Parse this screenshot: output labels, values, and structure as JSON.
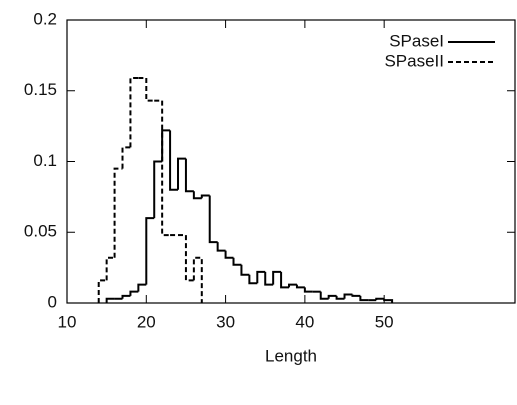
{
  "chart_data": {
    "type": "histogram",
    "x_label": "Length",
    "xlim": [
      10,
      66.5
    ],
    "ylim": [
      0,
      0.2
    ],
    "xticks": [
      10,
      20,
      30,
      40,
      50
    ],
    "yticks": [
      0,
      0.05,
      0.1,
      0.15,
      0.2
    ],
    "legend": "top-right",
    "series": [
      {
        "name": "SPaseI",
        "color": "#000000",
        "dash": "solid",
        "bins": [
          15,
          16,
          17,
          18,
          19,
          20,
          21,
          22,
          23,
          24,
          25,
          26,
          27,
          28,
          29,
          30,
          31,
          32,
          33,
          34,
          35,
          36,
          37,
          38,
          39,
          40,
          41,
          42,
          43,
          44,
          45,
          46,
          47,
          48,
          49,
          50,
          51
        ],
        "values": [
          0.003,
          0.003,
          0.005,
          0.008,
          0.013,
          0.06,
          0.1,
          0.122,
          0.08,
          0.102,
          0.079,
          0.074,
          0.076,
          0.043,
          0.037,
          0.032,
          0.027,
          0.02,
          0.014,
          0.022,
          0.013,
          0.022,
          0.011,
          0.013,
          0.011,
          0.008,
          0.008,
          0.003,
          0.005,
          0.003,
          0.006,
          0.005,
          0.002,
          0.002,
          0.003,
          0.002
        ]
      },
      {
        "name": "SPaseII",
        "color": "#000000",
        "dash": "dashed",
        "bins": [
          14,
          15,
          16,
          17,
          18,
          19,
          20,
          21,
          22,
          23,
          24,
          25,
          26,
          27
        ],
        "values": [
          0.016,
          0.032,
          0.095,
          0.11,
          0.159,
          0.159,
          0.143,
          0.143,
          0.048,
          0.048,
          0.048,
          0.016,
          0.032
        ]
      }
    ]
  }
}
